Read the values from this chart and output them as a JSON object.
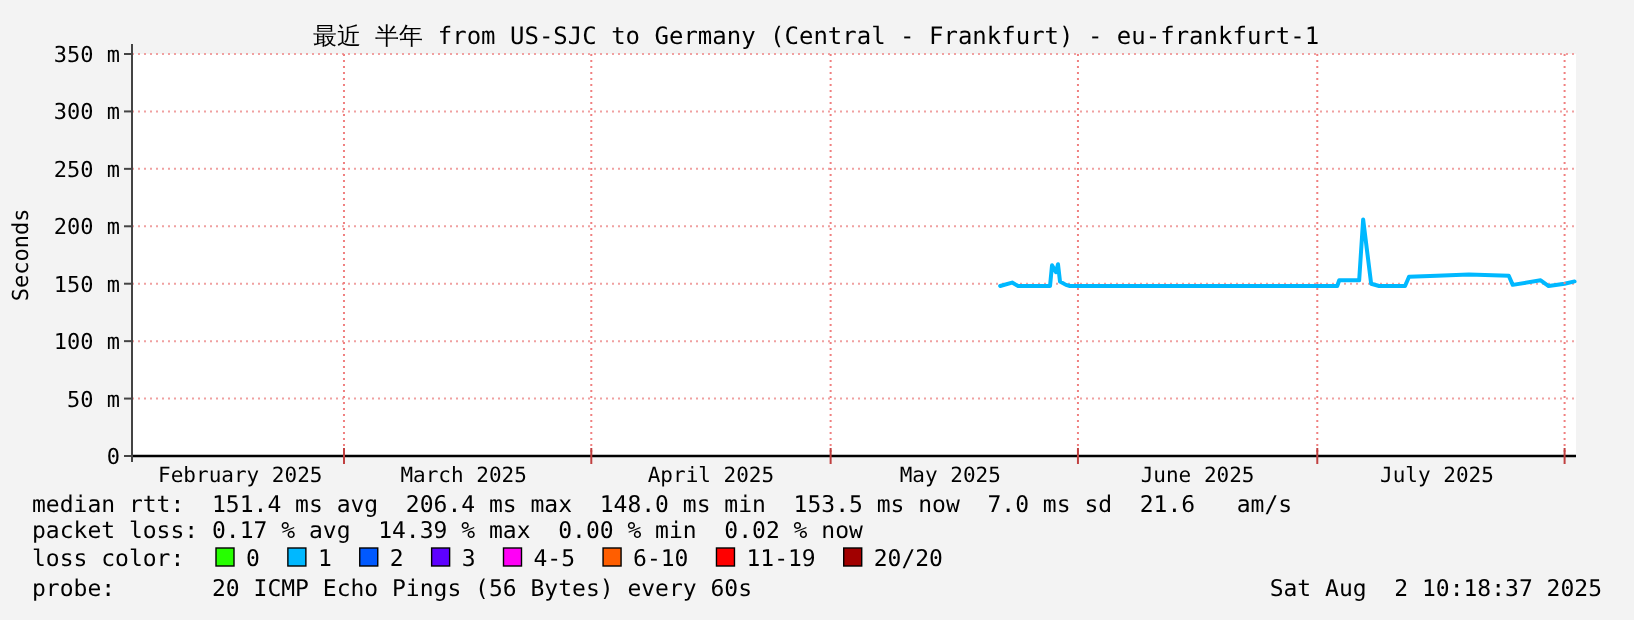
{
  "chart_data": {
    "type": "line",
    "title": "最近 半年 from US-SJC to Germany (Central - Frankfurt) - eu-frankfurt-1",
    "ylabel": "Seconds",
    "legend_title": "loss color:",
    "xlim": [
      "2025-02-02T10:18",
      "2025-08-02T10:18"
    ],
    "xticks": [
      {
        "value": "2025-03-01",
        "label": null
      },
      {
        "value": "2025-04-01",
        "label": null
      },
      {
        "value": "2025-05-01",
        "label": null
      },
      {
        "value": "2025-06-01",
        "label": null
      },
      {
        "value": "2025-07-01",
        "label": null
      },
      {
        "value": "2025-08-01",
        "label": null
      },
      {
        "value": "2025-02-16",
        "label": "February 2025"
      },
      {
        "value": "2025-03-16",
        "label": "March 2025"
      },
      {
        "value": "2025-04-16",
        "label": "April 2025"
      },
      {
        "value": "2025-05-16",
        "label": "May 2025"
      },
      {
        "value": "2025-06-16",
        "label": "June 2025"
      },
      {
        "value": "2025-07-16",
        "label": "July 2025"
      }
    ],
    "ylim": [
      0,
      350
    ],
    "yticks": [
      0,
      {
        "value": 50,
        "label": "50 m"
      },
      {
        "value": 100,
        "label": "100 m"
      },
      {
        "value": 150,
        "label": "150 m"
      },
      {
        "value": 200,
        "label": "200 m"
      },
      {
        "value": 250,
        "label": "250 m"
      },
      {
        "value": 300,
        "label": "300 m"
      },
      {
        "value": 350,
        "label": "350 m"
      }
    ],
    "grid": true,
    "legend": "bottom",
    "series": [
      {
        "color": "#00b8ff",
        "x": [
          "2025-05-22T06:00",
          "2025-05-23T18:00",
          "2025-05-24T12:00",
          "2025-05-28T12:00",
          "2025-05-28T18:00",
          "2025-05-29T06:00",
          "2025-05-29T12:00",
          "2025-05-29T18:00",
          "2025-05-30T12:00",
          "2025-05-31",
          "2025-06-15",
          "2025-07-03T12:00",
          "2025-07-03T18:00",
          "2025-07-06T06:00",
          "2025-07-06T18:00",
          "2025-07-07T18:00",
          "2025-07-08T18:00",
          "2025-07-12",
          "2025-07-12T12:00",
          "2025-07-16",
          "2025-07-20",
          "2025-07-25",
          "2025-07-25T12:00",
          "2025-07-29",
          "2025-07-30",
          "2025-08-01",
          "2025-08-02T06:00"
        ],
        "values": [
          148,
          151,
          148,
          148,
          166,
          160,
          167,
          152,
          149,
          148,
          148,
          148,
          153,
          153,
          206,
          150,
          148,
          148,
          156,
          157,
          158,
          157,
          149,
          153,
          148,
          150,
          152
        ]
      },
      {
        "name": "0",
        "color": "#26ff00"
      },
      {
        "name": "1",
        "color": "#00b8ff"
      },
      {
        "name": "2",
        "color": "#0059ff"
      },
      {
        "name": "3",
        "color": "#5e00ff"
      },
      {
        "name": "4-5",
        "color": "#ff00f6"
      },
      {
        "name": "6-10",
        "color": "#ff5e00"
      },
      {
        "name": "11-19",
        "color": "#ff0000"
      },
      {
        "name": "20/20",
        "color": "#a10000"
      }
    ],
    "annotations": [
      "median rtt:  151.4 ms avg  206.4 ms max  148.0 ms min  153.5 ms now  7.0 ms sd  21.6   am/s",
      "packet loss: 0.17 % avg  14.39 % max  0.00 % min  0.02 % now",
      "probe:       20 ICMP Echo Pings (56 Bytes) every 60s",
      "Sat Aug  2 10:18:37 2025"
    ]
  }
}
